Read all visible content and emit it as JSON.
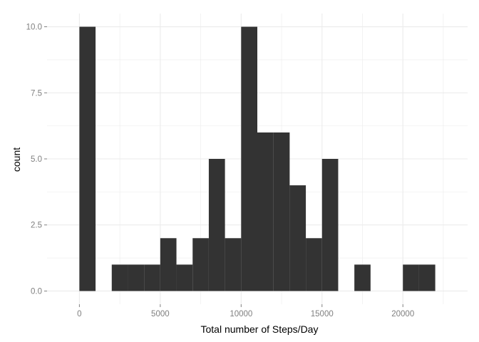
{
  "chart_data": {
    "type": "bar",
    "subtype": "histogram",
    "title": "",
    "xlabel": "Total number of Steps/Day",
    "ylabel": "count",
    "bin_width": 1000,
    "bins": [
      {
        "x0": 0,
        "x1": 1000,
        "count": 10
      },
      {
        "x0": 1000,
        "x1": 2000,
        "count": 0
      },
      {
        "x0": 2000,
        "x1": 3000,
        "count": 1
      },
      {
        "x0": 3000,
        "x1": 4000,
        "count": 1
      },
      {
        "x0": 4000,
        "x1": 5000,
        "count": 1
      },
      {
        "x0": 5000,
        "x1": 6000,
        "count": 2
      },
      {
        "x0": 6000,
        "x1": 7000,
        "count": 1
      },
      {
        "x0": 7000,
        "x1": 8000,
        "count": 2
      },
      {
        "x0": 8000,
        "x1": 9000,
        "count": 5
      },
      {
        "x0": 9000,
        "x1": 10000,
        "count": 2
      },
      {
        "x0": 10000,
        "x1": 11000,
        "count": 10
      },
      {
        "x0": 11000,
        "x1": 12000,
        "count": 6
      },
      {
        "x0": 12000,
        "x1": 13000,
        "count": 6
      },
      {
        "x0": 13000,
        "x1": 14000,
        "count": 4
      },
      {
        "x0": 14000,
        "x1": 15000,
        "count": 2
      },
      {
        "x0": 15000,
        "x1": 16000,
        "count": 5
      },
      {
        "x0": 16000,
        "x1": 17000,
        "count": 0
      },
      {
        "x0": 17000,
        "x1": 18000,
        "count": 1
      },
      {
        "x0": 18000,
        "x1": 19000,
        "count": 0
      },
      {
        "x0": 19000,
        "x1": 20000,
        "count": 0
      },
      {
        "x0": 20000,
        "x1": 21000,
        "count": 1
      },
      {
        "x0": 21000,
        "x1": 22000,
        "count": 1
      }
    ],
    "xlim": [
      -2000,
      24000
    ],
    "ylim": [
      -0.5,
      10.5
    ],
    "x_ticks": [
      0,
      5000,
      10000,
      15000,
      20000
    ],
    "x_tick_labels": [
      "0",
      "5000",
      "10000",
      "15000",
      "20000"
    ],
    "y_ticks": [
      0,
      2.5,
      5,
      7.5,
      10
    ],
    "y_tick_labels": [
      "0.0",
      "2.5",
      "5.0",
      "7.5",
      "10.0"
    ],
    "grid": true,
    "colors": {
      "bar": "#333333",
      "grid": "#ebebeb",
      "tick": "#7f7f7f",
      "background": "#ffffff"
    }
  }
}
